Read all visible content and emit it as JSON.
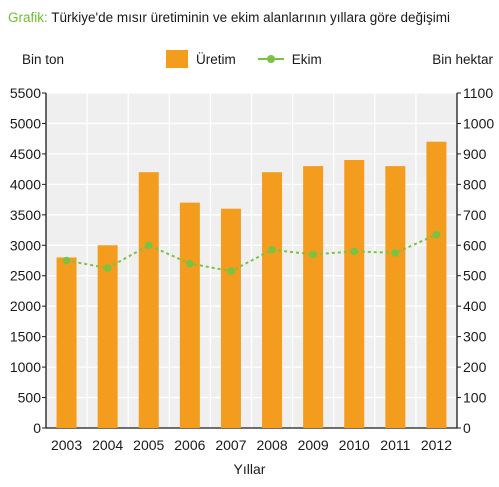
{
  "header": {
    "prefix": "Grafik:",
    "title": "Türkiye'de mısır üretiminin ve ekim alanlarının yıllara göre değişimi"
  },
  "chart_data": {
    "type": "bar",
    "categories": [
      "2003",
      "2004",
      "2005",
      "2006",
      "2007",
      "2008",
      "2009",
      "2010",
      "2011",
      "2012"
    ],
    "series": [
      {
        "name": "Üretim",
        "type": "bar",
        "axis": "left",
        "color": "#f39c1e",
        "values": [
          2800,
          3000,
          4200,
          3700,
          3600,
          4200,
          4300,
          4400,
          4300,
          4700
        ]
      },
      {
        "name": "Ekim",
        "type": "line",
        "axis": "right",
        "color": "#7cc242",
        "values": [
          550,
          525,
          600,
          540,
          515,
          585,
          570,
          580,
          575,
          635
        ]
      }
    ],
    "ylabel_left": "Bin ton",
    "ylabel_right": "Bin hektar",
    "xlabel": "Yıllar",
    "ylim_left": [
      0,
      5500
    ],
    "ylim_right": [
      0,
      1100
    ],
    "yticks_left": [
      0,
      500,
      1000,
      1500,
      2000,
      2500,
      3000,
      3500,
      4000,
      4500,
      5000,
      5500
    ],
    "yticks_right": [
      0,
      100,
      200,
      300,
      400,
      500,
      600,
      700,
      800,
      900,
      1000,
      1100
    ],
    "grid": true,
    "legend": "top-center"
  }
}
